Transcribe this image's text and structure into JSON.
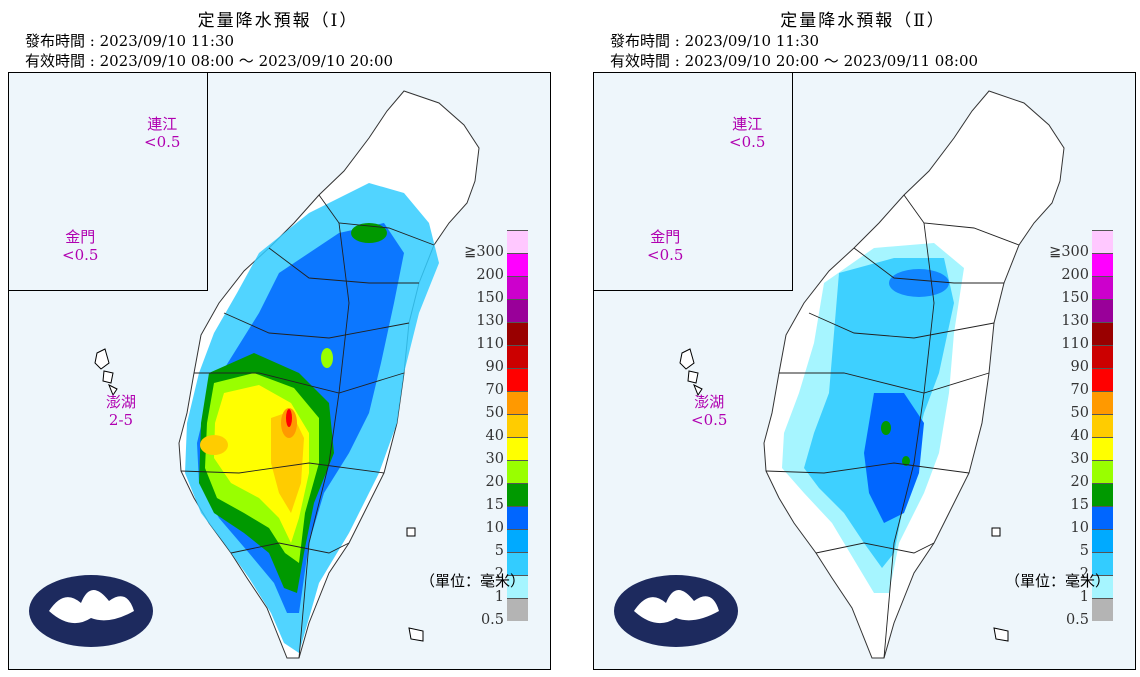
{
  "panels": [
    {
      "title": "定量降水預報（Ⅰ）",
      "issue_time": "發布時間 : 2023/09/10 11:30",
      "valid_time": "有效時間 : 2023/09/10 08:00 ～ 2023/09/10 20:00",
      "islands": [
        {
          "name": "連江",
          "value": "<0.5"
        },
        {
          "name": "金門",
          "value": "<0.5"
        },
        {
          "name": "澎湖",
          "value": "2-5"
        }
      ]
    },
    {
      "title": "定量降水預報（Ⅱ）",
      "issue_time": "發布時間 : 2023/09/10 11:30",
      "valid_time": "有效時間 : 2023/09/10 20:00 ～ 2023/09/11 08:00",
      "islands": [
        {
          "name": "連江",
          "value": "<0.5"
        },
        {
          "name": "金門",
          "value": "<0.5"
        },
        {
          "name": "澎湖",
          "value": "<0.5"
        }
      ]
    }
  ],
  "legend": {
    "top_symbol": "≧",
    "levels": [
      "300",
      "200",
      "150",
      "130",
      "110",
      "90",
      "70",
      "50",
      "40",
      "30",
      "20",
      "15",
      "10",
      "5",
      "2",
      "1",
      "0.5"
    ],
    "colors": [
      "#ffc8ff",
      "#ff00ff",
      "#cc00cc",
      "#990099",
      "#990000",
      "#cc0000",
      "#ff0000",
      "#ff9900",
      "#ffcc00",
      "#ffff00",
      "#99ff00",
      "#009900",
      "#0066ff",
      "#00aaff",
      "#33ccff",
      "#a6f5ff",
      "#b4b4b4"
    ]
  },
  "unit": "（單位：毫米）",
  "colors": {
    "sea": "#eef6fb",
    "land": "#ffffff",
    "island_label": "#b000b0",
    "logo": "#1d2a5e"
  }
}
